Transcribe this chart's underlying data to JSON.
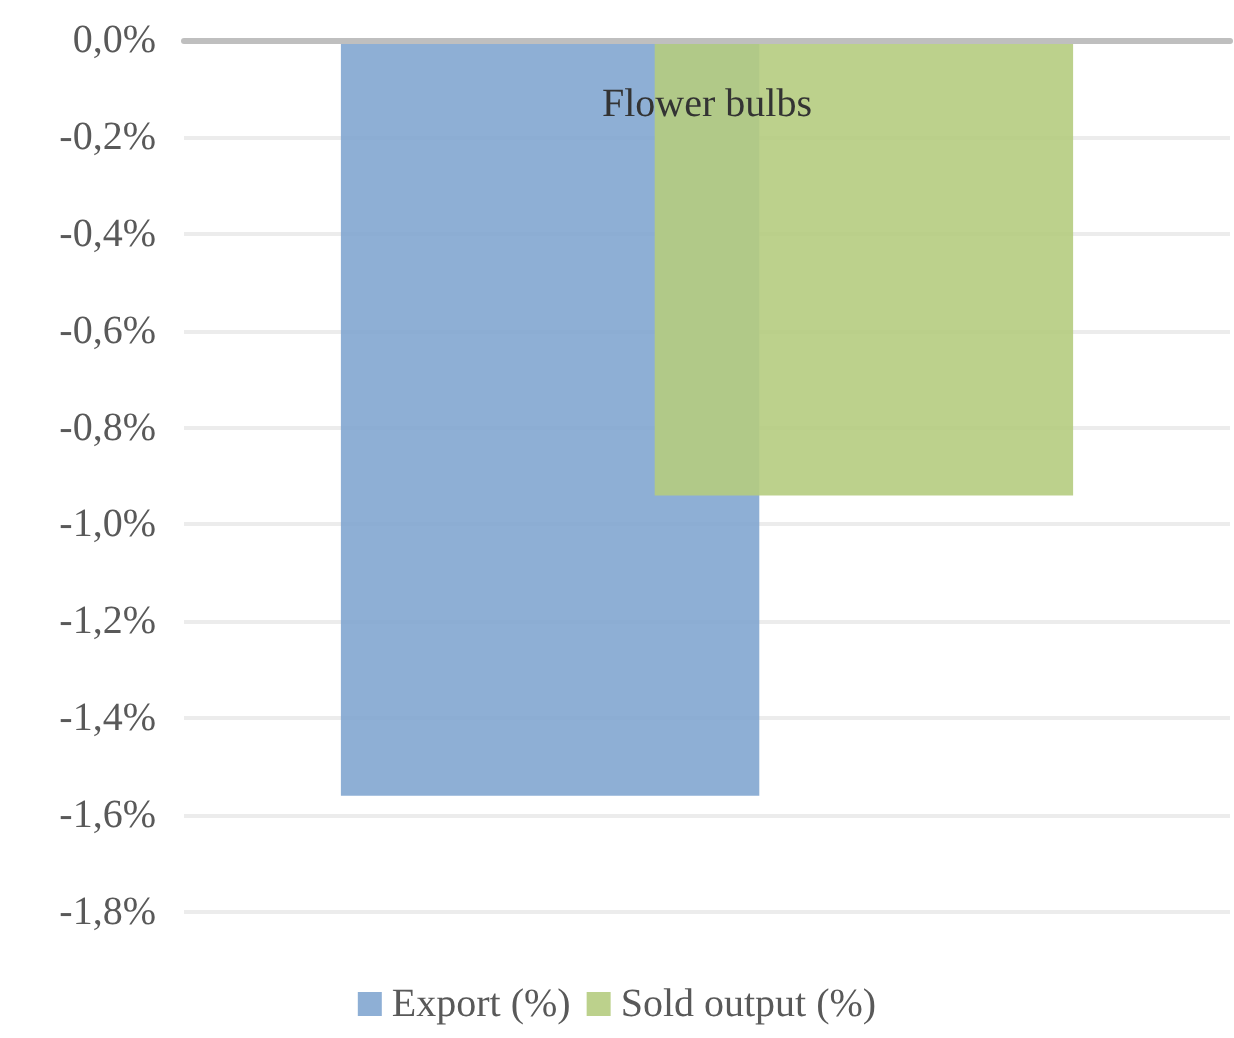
{
  "chart_data": {
    "type": "bar",
    "categories": [
      "Flower bulbs"
    ],
    "series": [
      {
        "name": "Export (%)",
        "color": "#82a6d0",
        "values": [
          -1.56
        ]
      },
      {
        "name": "Sold output (%)",
        "color": "#b5cc80",
        "values": [
          -0.94
        ]
      }
    ],
    "ylim": [
      -1.8,
      0
    ],
    "yticks": [
      {
        "value": 0,
        "label": "0,0%"
      },
      {
        "value": -0.2,
        "label": "-0,2%"
      },
      {
        "value": -0.4,
        "label": "-0,4%"
      },
      {
        "value": -0.6,
        "label": "-0,6%"
      },
      {
        "value": -0.8,
        "label": "-0,8%"
      },
      {
        "value": -1,
        "label": "-1,0%"
      },
      {
        "value": -1.2,
        "label": "-1,2%"
      },
      {
        "value": -1.4,
        "label": "-1,4%"
      },
      {
        "value": -1.6,
        "label": "-1,6%"
      },
      {
        "value": -1.8,
        "label": "-1,8%"
      }
    ],
    "grid": "y",
    "legend": "bottom"
  }
}
